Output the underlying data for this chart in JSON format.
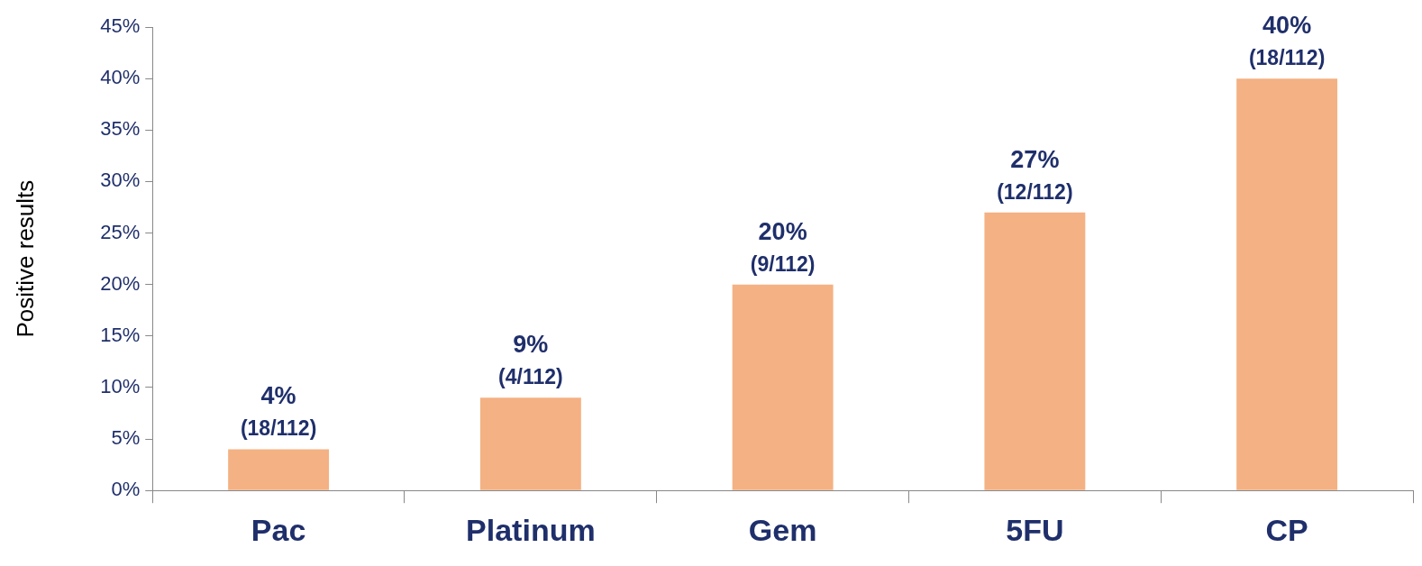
{
  "chart_data": {
    "type": "bar",
    "ylabel": "Positive results",
    "categories": [
      "Pac",
      "Platinum",
      "Gem",
      "5FU",
      "CP"
    ],
    "values": [
      4,
      9,
      20,
      27,
      40
    ],
    "value_labels": [
      "4% (18/112)",
      "9% (4/112)",
      "20% (9/112)",
      "27% (12/112)",
      "40% (18/112)"
    ],
    "color": "#f4b183",
    "ylim": [
      0,
      45
    ],
    "yticks": [
      {
        "value": 0,
        "label": "0%"
      },
      {
        "value": 5,
        "label": "5%"
      },
      {
        "value": 10,
        "label": "10%"
      },
      {
        "value": 15,
        "label": "15%"
      },
      {
        "value": 20,
        "label": "20%"
      },
      {
        "value": 25,
        "label": "25%"
      },
      {
        "value": 30,
        "label": "30%"
      },
      {
        "value": 35,
        "label": "35%"
      },
      {
        "value": 40,
        "label": "40%"
      },
      {
        "value": 45,
        "label": "45%"
      }
    ],
    "grid": false,
    "legend": false
  }
}
